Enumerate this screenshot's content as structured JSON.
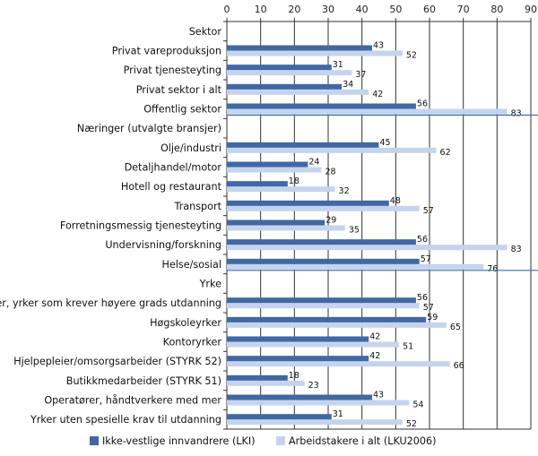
{
  "chart_data": {
    "type": "bar",
    "orientation": "horizontal",
    "xlim": [
      0,
      90
    ],
    "x_ticks": [
      "0",
      "10",
      "20",
      "30",
      "40",
      "50",
      "60",
      "70",
      "80",
      "90"
    ],
    "grid": true,
    "legend_position": "bottom",
    "categories": [
      "Sektor",
      "Privat vareproduksjon",
      "Privat tjenesteyting",
      "Privat sektor i alt",
      "Offentlig sektor",
      "Næringer (utvalgte bransjer)",
      "Olje/industri",
      "Detaljhandel/motor",
      "Hotell og restaurant",
      "Transport",
      "Forretningsmessig tjenesteyting",
      "Undervisning/forskning",
      "Helse/sosial",
      "Yrke",
      "Leder, yrker som krever høyere grads utdanning",
      "Høgskoleyrker",
      "Kontoryrker",
      "Hjelpepleier/omsorgsarbeider (STYRK 52)",
      "Butikkmedarbeider (STYRK 51)",
      "Operatører, håndtverkere med mer",
      "Yrker uten spesielle krav til utdanning"
    ],
    "series": [
      {
        "name": "Ikke-vestlige innvandrere (LKI)",
        "color": "#4168a4",
        "values": [
          null,
          43,
          31,
          34,
          56,
          null,
          45,
          24,
          18,
          48,
          29,
          56,
          57,
          null,
          56,
          59,
          42,
          42,
          18,
          43,
          31
        ]
      },
      {
        "name": "Arbeidstakere i alt (LKU2006)",
        "color": "#c5d4ee",
        "values": [
          null,
          52,
          37,
          42,
          83,
          null,
          62,
          28,
          32,
          57,
          35,
          83,
          76,
          null,
          57,
          65,
          51,
          66,
          23,
          54,
          52
        ]
      }
    ],
    "separator_after": [
      "Offentlig sektor",
      "Helse/sosial"
    ]
  }
}
